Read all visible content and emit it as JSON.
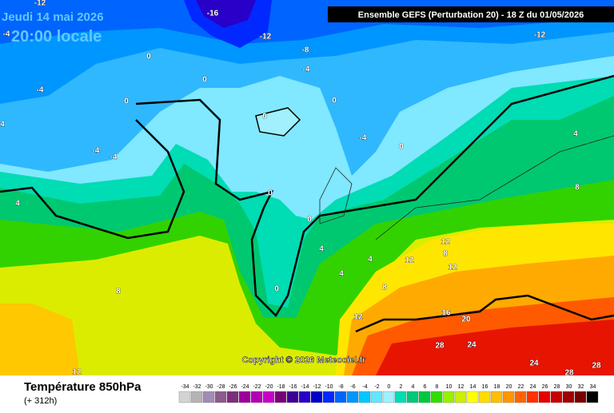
{
  "header": {
    "date": "Jeudi 14 mai 2026",
    "time": "20:00 locale",
    "run": "Ensemble GEFS  (Perturbation 20)  -  18 Z du 01/05/2026"
  },
  "footer": {
    "title": "Température 850hPa",
    "lead": "(+ 312h)",
    "copyright": "Copyright © 2026 Meteociel.fr"
  },
  "legend": {
    "values": [
      -34,
      -32,
      -30,
      -28,
      -26,
      -24,
      -22,
      -20,
      -18,
      -16,
      -14,
      -12,
      -10,
      -8,
      -6,
      -4,
      -2,
      0,
      2,
      4,
      6,
      8,
      10,
      12,
      14,
      16,
      18,
      20,
      22,
      24,
      26,
      28,
      30,
      32,
      34
    ],
    "colors": [
      "#d3d3d3",
      "#b4b4b4",
      "#a08cb4",
      "#8c5a8c",
      "#7d2d7d",
      "#9b009b",
      "#b400b4",
      "#c800c8",
      "#780078",
      "#3c0096",
      "#2800c8",
      "#0000c8",
      "#0028ff",
      "#0064ff",
      "#0096ff",
      "#00c8ff",
      "#64e6ff",
      "#a0f0ff",
      "#00dcb4",
      "#00c878",
      "#00c83c",
      "#32dc00",
      "#96f000",
      "#c8f000",
      "#ffff00",
      "#ffdc00",
      "#ffbe00",
      "#ff9600",
      "#ff6400",
      "#ff3200",
      "#e60000",
      "#c80000",
      "#a00000",
      "#780000",
      "#000000"
    ]
  },
  "contour_labels": [
    "-12",
    "-16",
    "-4",
    "-12",
    "-8",
    "-12",
    "0",
    "-4",
    "-4",
    "0",
    "0",
    "0",
    "4",
    "0",
    "-4",
    "0",
    "4",
    "-4",
    "-4",
    "8",
    "0",
    "4",
    "0",
    "12",
    "12",
    "8",
    "4",
    "4",
    "12",
    "4",
    "8",
    "0",
    "8",
    "12",
    "16",
    "20",
    "28",
    "24",
    "24",
    "28",
    "28",
    "12"
  ]
}
